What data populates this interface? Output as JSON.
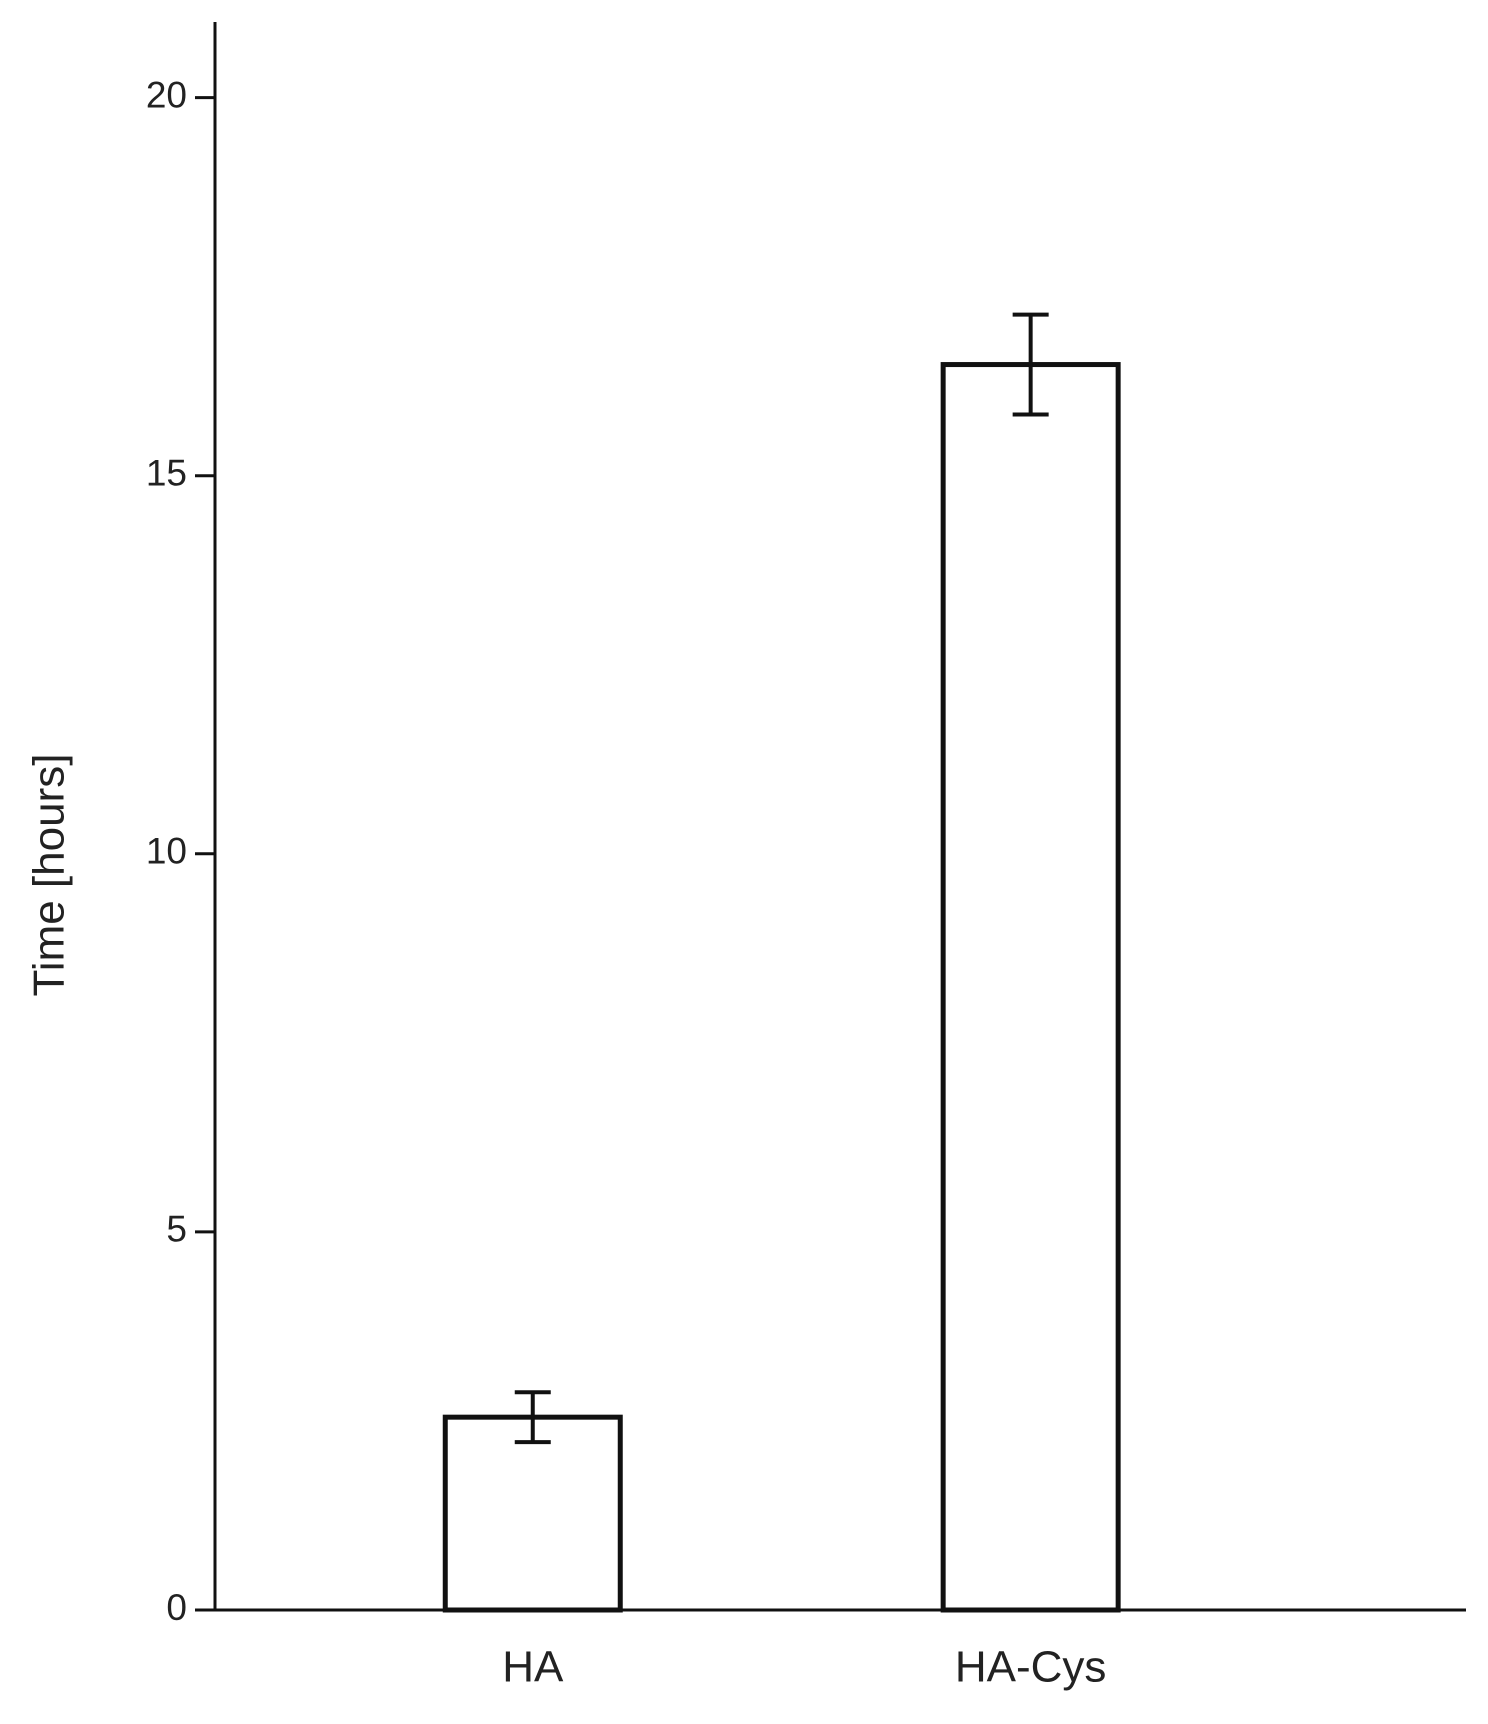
{
  "chart_data": {
    "type": "bar",
    "y_label": "Time [hours]",
    "categories": [
      "HA",
      "HA-Cys"
    ],
    "values": [
      2.55,
      16.47
    ],
    "errors": [
      0.33,
      0.66
    ],
    "color": "#ffffff",
    "ylim": [
      0,
      21
    ],
    "yticks": [
      0,
      5,
      10,
      15,
      20
    ],
    "grid": false
  }
}
